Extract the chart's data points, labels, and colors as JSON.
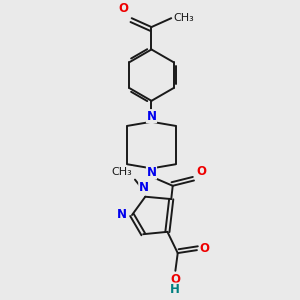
{
  "background_color": "#eaeaea",
  "bond_color": "#1a1a1a",
  "N_color": "#0000ee",
  "O_color": "#ee0000",
  "H_color": "#008080",
  "figsize": [
    3.0,
    3.0
  ],
  "dpi": 100,
  "lw": 1.4,
  "fs": 8.5,
  "xlim": [
    0,
    10
  ],
  "ylim": [
    0,
    10
  ]
}
